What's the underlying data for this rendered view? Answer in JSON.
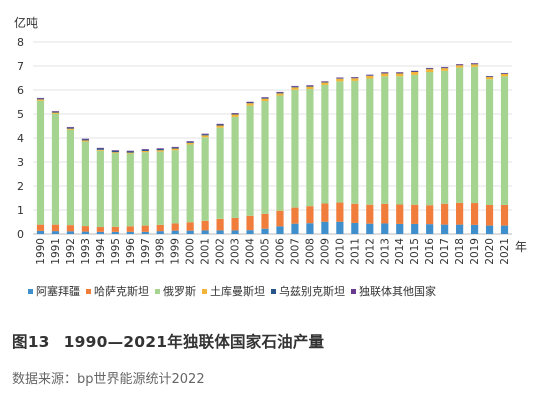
{
  "chart_data": {
    "type": "bar",
    "stacked": true,
    "ylabel": "亿吨",
    "xlabel": "年",
    "ylim": [
      0,
      8
    ],
    "yticks": [
      0,
      1,
      2,
      3,
      4,
      5,
      6,
      7,
      8
    ],
    "grid": "horizontal",
    "legend_position": "bottom",
    "categories": [
      "1990",
      "1991",
      "1992",
      "1993",
      "1994",
      "1995",
      "1996",
      "1997",
      "1998",
      "1999",
      "2000",
      "2001",
      "2002",
      "2003",
      "2004",
      "2005",
      "2006",
      "2007",
      "2008",
      "2009",
      "2010",
      "2011",
      "2012",
      "2013",
      "2014",
      "2015",
      "2016",
      "2017",
      "2018",
      "2019",
      "2020",
      "2021"
    ],
    "series": [
      {
        "name": "阿塞拜疆",
        "color": "#3f8fcd",
        "values": [
          0.13,
          0.12,
          0.11,
          0.1,
          0.09,
          0.09,
          0.09,
          0.09,
          0.12,
          0.14,
          0.14,
          0.15,
          0.15,
          0.15,
          0.16,
          0.22,
          0.32,
          0.43,
          0.45,
          0.51,
          0.51,
          0.46,
          0.43,
          0.44,
          0.42,
          0.42,
          0.41,
          0.39,
          0.39,
          0.38,
          0.35,
          0.35
        ]
      },
      {
        "name": "哈萨克斯坦",
        "color": "#f07d3c",
        "values": [
          0.26,
          0.27,
          0.26,
          0.23,
          0.2,
          0.21,
          0.23,
          0.26,
          0.26,
          0.3,
          0.35,
          0.4,
          0.48,
          0.52,
          0.6,
          0.62,
          0.65,
          0.67,
          0.71,
          0.76,
          0.8,
          0.8,
          0.79,
          0.82,
          0.81,
          0.8,
          0.79,
          0.87,
          0.91,
          0.91,
          0.86,
          0.86
        ]
      },
      {
        "name": "俄罗斯",
        "color": "#a5d491",
        "values": [
          5.16,
          4.62,
          3.97,
          3.52,
          3.18,
          3.07,
          3.03,
          3.06,
          3.05,
          3.05,
          3.24,
          3.48,
          3.8,
          4.21,
          4.59,
          4.7,
          4.8,
          4.91,
          4.88,
          4.94,
          5.05,
          5.12,
          5.26,
          5.31,
          5.34,
          5.41,
          5.55,
          5.54,
          5.63,
          5.68,
          5.24,
          5.36
        ]
      },
      {
        "name": "土库曼斯坦",
        "color": "#f2b53a",
        "values": [
          0.06,
          0.05,
          0.05,
          0.05,
          0.04,
          0.04,
          0.04,
          0.05,
          0.06,
          0.07,
          0.07,
          0.08,
          0.09,
          0.1,
          0.1,
          0.1,
          0.09,
          0.1,
          0.1,
          0.1,
          0.11,
          0.11,
          0.11,
          0.12,
          0.12,
          0.12,
          0.12,
          0.11,
          0.1,
          0.1,
          0.09,
          0.1
        ]
      },
      {
        "name": "乌兹别克斯坦",
        "color": "#2a5588",
        "values": [
          0.03,
          0.03,
          0.04,
          0.04,
          0.05,
          0.05,
          0.05,
          0.05,
          0.05,
          0.04,
          0.04,
          0.04,
          0.04,
          0.03,
          0.03,
          0.03,
          0.03,
          0.03,
          0.03,
          0.02,
          0.02,
          0.02,
          0.02,
          0.02,
          0.02,
          0.02,
          0.02,
          0.02,
          0.02,
          0.02,
          0.02,
          0.02
        ]
      },
      {
        "name": "独联体其他国家",
        "color": "#6a3a8f",
        "values": [
          0.03,
          0.03,
          0.03,
          0.03,
          0.03,
          0.03,
          0.03,
          0.03,
          0.03,
          0.03,
          0.03,
          0.03,
          0.03,
          0.03,
          0.03,
          0.03,
          0.03,
          0.03,
          0.03,
          0.03,
          0.03,
          0.03,
          0.03,
          0.03,
          0.03,
          0.03,
          0.03,
          0.03,
          0.03,
          0.03,
          0.02,
          0.02
        ]
      }
    ]
  },
  "caption": {
    "figure_number": "图13",
    "title": "1990—2021年独联体国家石油产量"
  },
  "source": "数据来源：bp世界能源统计2022"
}
